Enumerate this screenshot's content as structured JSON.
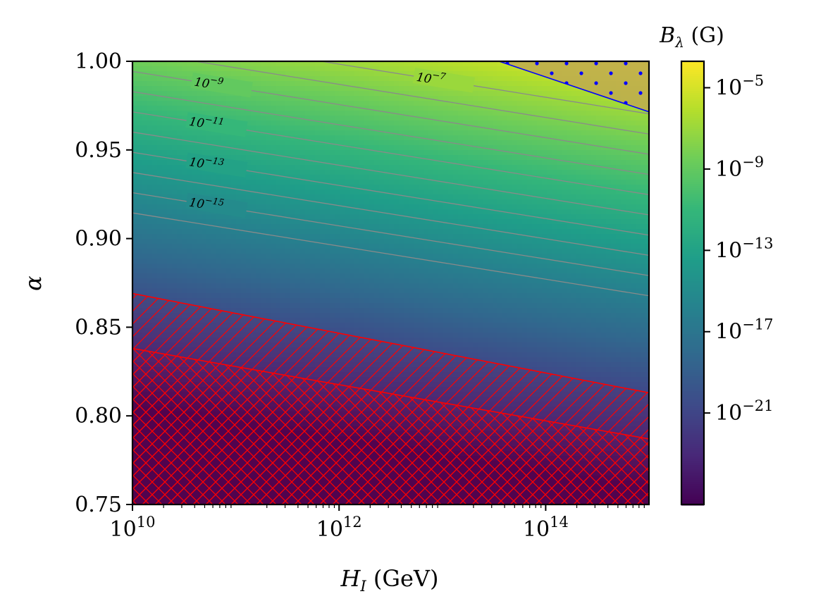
{
  "chart_data": {
    "type": "heatmap",
    "title": "",
    "xlabel": "H_I (GeV)",
    "ylabel": "α",
    "colorbar_label": "B_λ (G)",
    "x_scale": "log",
    "xlim_log10": [
      10,
      15.0
    ],
    "ylim": [
      0.75,
      1.0
    ],
    "x_ticks": [
      {
        "value_log10": 10,
        "base": "10",
        "exp": "10"
      },
      {
        "value_log10": 12,
        "base": "10",
        "exp": "12"
      },
      {
        "value_log10": 14,
        "base": "10",
        "exp": "14"
      }
    ],
    "y_ticks": [
      "1.00",
      "0.95",
      "0.90",
      "0.85",
      "0.80",
      "0.75"
    ],
    "y_tick_values": [
      1.0,
      0.95,
      0.9,
      0.85,
      0.8,
      0.75
    ],
    "colormap": "viridis",
    "color_range_log10": [
      -25.5,
      -3.7
    ],
    "colorbar_ticks": [
      {
        "value_log10": -5,
        "base": "10",
        "exp": "−5"
      },
      {
        "value_log10": -9,
        "base": "10",
        "exp": "−9"
      },
      {
        "value_log10": -13,
        "base": "10",
        "exp": "−13"
      },
      {
        "value_log10": -17,
        "base": "10",
        "exp": "−17"
      },
      {
        "value_log10": -21,
        "base": "10",
        "exp": "−21"
      }
    ],
    "field_model": {
      "log10_B_at_origin": -8.5,
      "slope_per_alpha": 87.7,
      "slope_per_log10_H": 0.82,
      "origin": {
        "alpha": 1.0,
        "log10_H": 10
      }
    },
    "contour_levels_log10": [
      -7,
      -8,
      -9,
      -10,
      -11,
      -12,
      -13,
      -14,
      -15,
      -16
    ],
    "contour_labels": [
      {
        "level_log10": -7,
        "base": "10",
        "exp": "−7",
        "at_log10_H": 12.75
      },
      {
        "level_log10": -9,
        "base": "10",
        "exp": "−9",
        "at_log10_H": 10.6
      },
      {
        "level_log10": -11,
        "base": "10",
        "exp": "−11",
        "at_log10_H": 10.55
      },
      {
        "level_log10": -13,
        "base": "10",
        "exp": "−13",
        "at_log10_H": 10.55
      },
      {
        "level_log10": -15,
        "base": "10",
        "exp": "−15",
        "at_log10_H": 10.55
      }
    ],
    "regions": [
      {
        "name": "excluded-single-hatch",
        "color": "#ff0000",
        "hatch": "diagonal",
        "boundary": [
          [
            10,
            0.869
          ],
          [
            15.0,
            0.813
          ]
        ]
      },
      {
        "name": "excluded-cross-hatch",
        "color": "#ff0000",
        "hatch": "cross",
        "boundary": [
          [
            10,
            0.838
          ],
          [
            15.0,
            0.787
          ]
        ]
      },
      {
        "name": "dotted-region",
        "color": "#0000ff",
        "hatch": "dots",
        "boundary": [
          [
            13.55,
            1.0
          ],
          [
            15.0,
            0.9715
          ]
        ]
      }
    ]
  }
}
